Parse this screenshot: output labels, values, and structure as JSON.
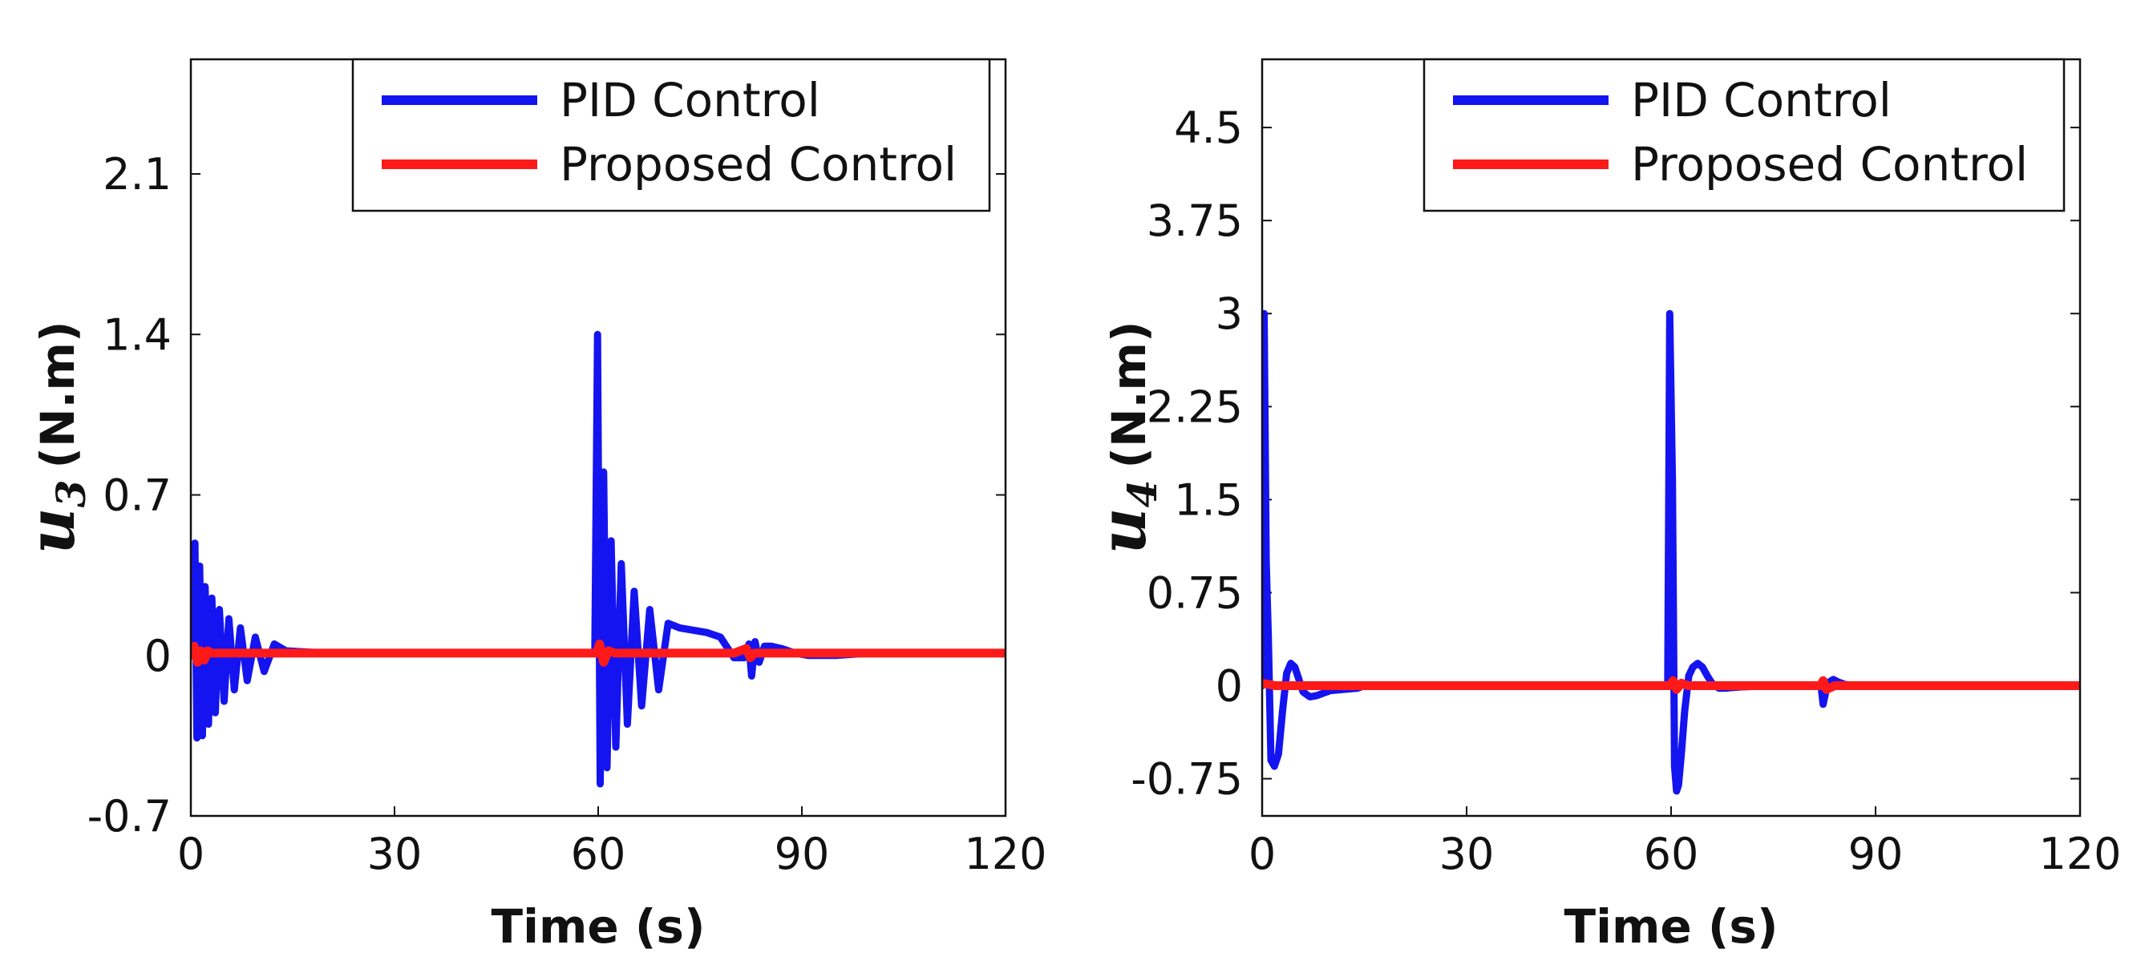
{
  "colors": {
    "pid": "#1414f0",
    "proposed": "#ff1a1a",
    "axis": "#111111"
  },
  "chart_data": [
    {
      "type": "line",
      "xlabel": "Time (s)",
      "ylabel": {
        "var": "u",
        "sub": "3",
        "unit": "(N.m)"
      },
      "xlim": [
        0,
        120
      ],
      "ylim": [
        -0.7,
        2.6
      ],
      "xticks": [
        0,
        30,
        60,
        90,
        120
      ],
      "xtick_labels": [
        "0",
        "30",
        "60",
        "90",
        "120"
      ],
      "yticks": [
        -0.7,
        0,
        0.7,
        1.4,
        2.1
      ],
      "ytick_labels": [
        "-0.7",
        "0",
        "0.7",
        "1.4",
        "2.1"
      ],
      "legend": {
        "position": "top-right",
        "entries": [
          "PID Control",
          "Proposed Control"
        ]
      },
      "series": [
        {
          "name": "PID Control",
          "x": [
            0,
            0.6,
            0.9,
            1.3,
            1.7,
            2.1,
            2.6,
            3.1,
            3.6,
            4.2,
            4.9,
            5.6,
            6.4,
            7.3,
            8.3,
            9.5,
            10.8,
            12.3,
            14,
            20,
            30,
            40,
            50,
            59.5,
            59.9,
            60.3,
            60.8,
            61.3,
            61.9,
            62.6,
            63.4,
            64.3,
            65.3,
            66.4,
            67.6,
            68.9,
            70.3,
            72,
            74,
            76,
            78,
            80,
            81.5,
            82.2,
            82.6,
            83.1,
            83.7,
            84.5,
            85.5,
            87,
            89,
            91,
            95,
            100,
            110,
            120
          ],
          "y": [
            0,
            0.49,
            -0.36,
            0.39,
            -0.35,
            0.3,
            -0.3,
            0.25,
            -0.25,
            0.2,
            -0.2,
            0.16,
            -0.15,
            0.12,
            -0.11,
            0.08,
            -0.07,
            0.05,
            0.02,
            0.01,
            0.01,
            0.01,
            0.01,
            0.01,
            1.4,
            -0.56,
            0.8,
            -0.49,
            0.5,
            -0.4,
            0.4,
            -0.3,
            0.28,
            -0.22,
            0.2,
            -0.15,
            0.14,
            0.12,
            0.11,
            0.1,
            0.08,
            -0.01,
            -0.01,
            0.05,
            -0.09,
            0.06,
            -0.03,
            0.04,
            0.04,
            0.03,
            0.01,
            0.0,
            0.0,
            0.01,
            0.01,
            0.01
          ]
        },
        {
          "name": "Proposed Control",
          "x": [
            0,
            0.5,
            1,
            1.5,
            2,
            2.5,
            3,
            4,
            6,
            10,
            20,
            30,
            40,
            50,
            59.8,
            60.2,
            60.8,
            61.5,
            62.5,
            70,
            80,
            81.8,
            82.4,
            83,
            84,
            90,
            100,
            110,
            120
          ],
          "y": [
            0,
            0.04,
            -0.03,
            0.02,
            -0.02,
            0.02,
            0.01,
            0.01,
            0.01,
            0.01,
            0.01,
            0.01,
            0.01,
            0.01,
            0.01,
            0.05,
            -0.03,
            0.02,
            0.01,
            0.01,
            0.01,
            0.03,
            -0.01,
            0.01,
            0.01,
            0.01,
            0.01,
            0.01,
            0.01
          ]
        }
      ]
    },
    {
      "type": "line",
      "xlabel": "Time (s)",
      "ylabel": {
        "var": "u",
        "sub": "4",
        "unit": "(N.m)"
      },
      "xlim": [
        0,
        120
      ],
      "ylim": [
        -1.05,
        5.05
      ],
      "xticks": [
        0,
        30,
        60,
        90,
        120
      ],
      "xtick_labels": [
        "0",
        "30",
        "60",
        "90",
        "120"
      ],
      "yticks": [
        -0.75,
        0,
        0.75,
        1.5,
        2.25,
        3,
        3.75,
        4.5
      ],
      "ytick_labels": [
        "-0.75",
        "0",
        "0.75",
        "1.5",
        "2.25",
        "3",
        "3.75",
        "4.5"
      ],
      "legend": {
        "position": "top-right",
        "entries": [
          "PID Control",
          "Proposed Control"
        ]
      },
      "series": [
        {
          "name": "PID Control",
          "x": [
            0,
            0.3,
            0.6,
            0.9,
            1.3,
            1.8,
            2.4,
            3.0,
            3.6,
            4.2,
            4.8,
            5.4,
            6.0,
            7.0,
            8.0,
            9.0,
            10.0,
            12.0,
            14.0,
            15.0,
            20,
            30,
            40,
            50,
            59.5,
            59.8,
            60.2,
            60.5,
            60.8,
            61.1,
            61.5,
            62.0,
            62.6,
            63.2,
            63.9,
            64.6,
            65.3,
            66.0,
            67.0,
            68.0,
            70,
            75,
            80,
            82,
            82.3,
            82.7,
            83.2,
            83.8,
            84.5,
            85.5,
            87,
            90,
            100,
            110,
            120
          ],
          "y": [
            0,
            3.0,
            1.0,
            0.4,
            -0.6,
            -0.65,
            -0.55,
            -0.2,
            0.1,
            0.18,
            0.15,
            0.05,
            -0.05,
            -0.09,
            -0.08,
            -0.06,
            -0.04,
            -0.03,
            -0.02,
            0,
            0,
            0,
            0,
            0,
            0,
            3.0,
            1.65,
            -0.65,
            -0.85,
            -0.8,
            -0.55,
            -0.2,
            0.08,
            0.15,
            0.18,
            0.15,
            0.08,
            0.02,
            -0.02,
            -0.02,
            -0.01,
            0,
            0,
            0,
            -0.15,
            -0.05,
            0.03,
            0.05,
            0.03,
            0.01,
            0,
            0,
            0,
            0,
            0
          ]
        },
        {
          "name": "Proposed Control",
          "x": [
            0,
            1,
            2,
            5,
            10,
            20,
            40,
            59.8,
            60.3,
            60.8,
            61.5,
            62.5,
            70,
            81.9,
            82.3,
            82.8,
            84,
            90,
            100,
            110,
            120
          ],
          "y": [
            0.02,
            0.01,
            0.0,
            0.0,
            0.0,
            0.0,
            0.0,
            0.0,
            0.04,
            -0.03,
            0.02,
            0.0,
            0.0,
            0.0,
            0.04,
            -0.03,
            0.0,
            0.0,
            0.0,
            0.0,
            0.0
          ]
        }
      ]
    }
  ]
}
